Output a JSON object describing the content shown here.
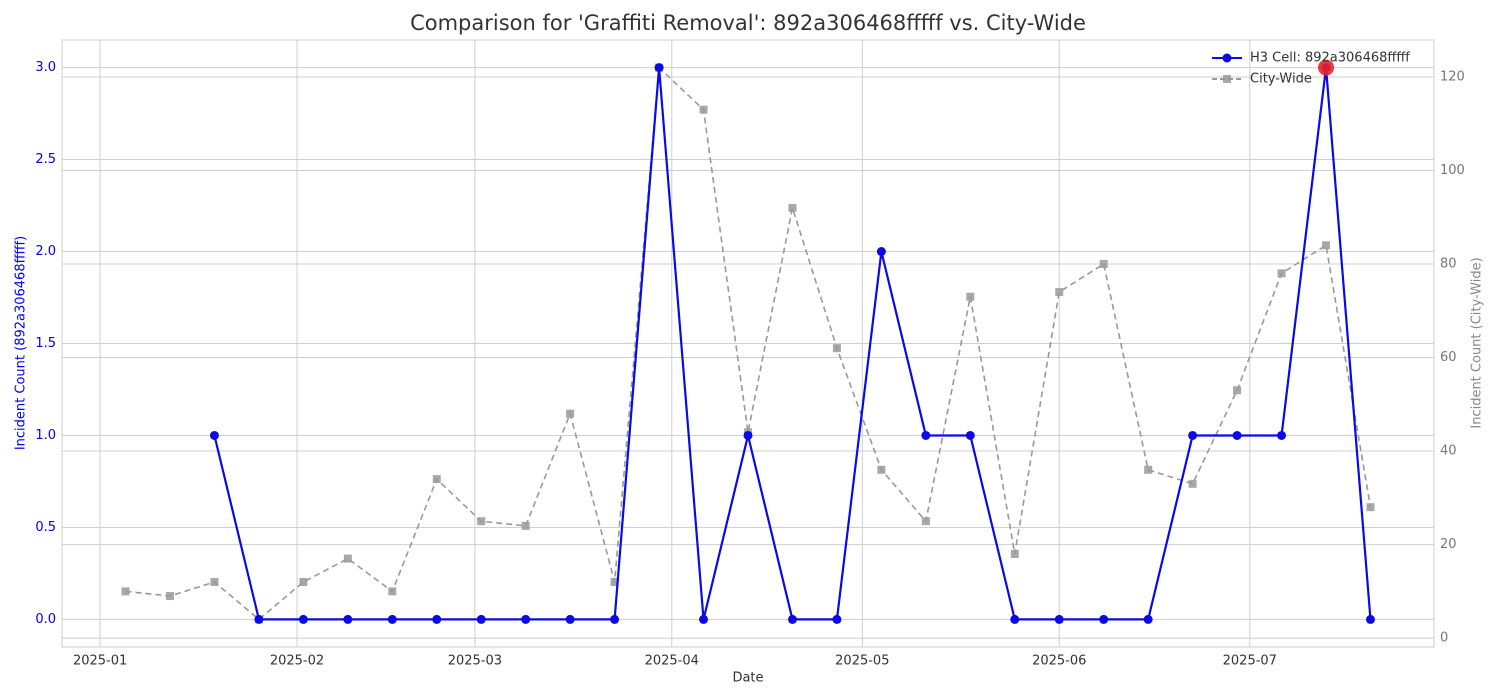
{
  "chart_data": {
    "type": "line",
    "title": "Comparison for 'Graffiti Removal': 892a306468fffff vs. City-Wide",
    "x_label": "Date",
    "y_label": "Incident Count (892a306468fffff)",
    "y2_label": "Incident Count (City-Wide)",
    "x": [
      "2025-01-05",
      "2025-01-12",
      "2025-01-19",
      "2025-01-26",
      "2025-02-02",
      "2025-02-09",
      "2025-02-16",
      "2025-02-23",
      "2025-03-02",
      "2025-03-09",
      "2025-03-16",
      "2025-03-23",
      "2025-03-30",
      "2025-04-06",
      "2025-04-13",
      "2025-04-20",
      "2025-04-27",
      "2025-05-04",
      "2025-05-11",
      "2025-05-18",
      "2025-05-25",
      "2025-06-01",
      "2025-06-08",
      "2025-06-15",
      "2025-06-22",
      "2025-06-29",
      "2025-07-06",
      "2025-07-13",
      "2025-07-20"
    ],
    "series": [
      {
        "name": "H3 Cell: 892a306468fffff",
        "color": "#0a0ae6",
        "axis": "y",
        "linestyle": "solid",
        "marker": "circle",
        "values": [
          null,
          null,
          1,
          0,
          0,
          0,
          0,
          0,
          0,
          0,
          0,
          0,
          3,
          0,
          1,
          0,
          0,
          2,
          1,
          1,
          0,
          0,
          0,
          0,
          1,
          1,
          1,
          3,
          0
        ]
      },
      {
        "name": "City-Wide",
        "color": "#999999",
        "axis": "y2",
        "linestyle": "dashed",
        "marker": "square",
        "values": [
          10,
          9,
          12,
          4,
          12,
          17,
          10,
          34,
          25,
          24,
          48,
          12,
          122,
          113,
          44,
          92,
          62,
          36,
          25,
          73,
          18,
          74,
          80,
          36,
          33,
          53,
          78,
          84,
          28
        ]
      }
    ],
    "highlight": {
      "x": "2025-07-13",
      "value": 3,
      "color": "#e8242b"
    },
    "xlim": [
      "2024-12-26",
      "2025-07-30"
    ],
    "xticks": [
      {
        "value": "2025-01-01",
        "label": "2025-01"
      },
      {
        "value": "2025-02-01",
        "label": "2025-02"
      },
      {
        "value": "2025-03-01",
        "label": "2025-03"
      },
      {
        "value": "2025-04-01",
        "label": "2025-04"
      },
      {
        "value": "2025-05-01",
        "label": "2025-05"
      },
      {
        "value": "2025-06-01",
        "label": "2025-06"
      },
      {
        "value": "2025-07-01",
        "label": "2025-07"
      }
    ],
    "ylim": [
      -0.15,
      3.15
    ],
    "yticks": [
      {
        "value": 0,
        "label": "0.0"
      },
      {
        "value": 0.5,
        "label": "0.5"
      },
      {
        "value": 1,
        "label": "1.0"
      },
      {
        "value": 1.5,
        "label": "1.5"
      },
      {
        "value": 2,
        "label": "2.0"
      },
      {
        "value": 2.5,
        "label": "2.5"
      },
      {
        "value": 3,
        "label": "3.0"
      }
    ],
    "y2lim": [
      -1.9,
      127.9
    ],
    "y2ticks": [
      0,
      20,
      40,
      60,
      80,
      100,
      120
    ],
    "grid": true,
    "legend": "upper right"
  }
}
